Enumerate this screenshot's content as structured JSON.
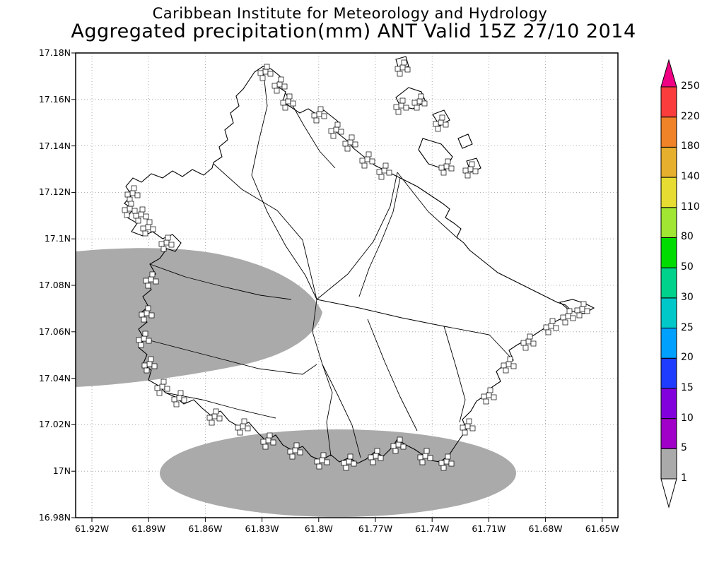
{
  "header": {
    "institute": "Caribbean Institute for Meteorology and Hydrology",
    "title": "Aggregated precipitation(mm) ANT Valid 15Z 27/10 2014"
  },
  "axes": {
    "y_ticks": [
      "17.18N",
      "17.16N",
      "17.14N",
      "17.12N",
      "17.1N",
      "17.08N",
      "17.06N",
      "17.04N",
      "17.02N",
      "17N",
      "16.98N"
    ],
    "x_ticks": [
      "61.92W",
      "61.89W",
      "61.86W",
      "61.83W",
      "61.8W",
      "61.77W",
      "61.74W",
      "61.71W",
      "61.68W",
      "61.65W"
    ]
  },
  "colorbar": {
    "levels": [
      "1",
      "5",
      "10",
      "15",
      "20",
      "25",
      "30",
      "50",
      "80",
      "110",
      "140",
      "180",
      "220",
      "250"
    ],
    "colors": [
      "#ffffff",
      "#aaaaaa",
      "#a000c8",
      "#8200dc",
      "#1e3cff",
      "#00a0ff",
      "#00c8c8",
      "#00d28c",
      "#00dc00",
      "#a0e632",
      "#e6dc32",
      "#e6af2d",
      "#f08228",
      "#fa3c3c",
      "#f00082"
    ]
  },
  "chart_data": {
    "type": "map",
    "variable": "Aggregated precipitation (mm)",
    "domain_label": "ANT (Antigua)",
    "valid_time": "15Z 27/10 2014",
    "lat_ticks": [
      "17.18N",
      "17.16N",
      "17.14N",
      "17.12N",
      "17.1N",
      "17.08N",
      "17.06N",
      "17.04N",
      "17.02N",
      "17N",
      "16.98N"
    ],
    "lon_ticks": [
      "61.92W",
      "61.89W",
      "61.86W",
      "61.83W",
      "61.8W",
      "61.77W",
      "61.74W",
      "61.71W",
      "61.68W",
      "61.65W"
    ],
    "colorbar_levels_mm": [
      1,
      5,
      10,
      15,
      20,
      25,
      30,
      50,
      80,
      110,
      140,
      180,
      220,
      250
    ],
    "shaded_regions": [
      {
        "range_mm": "1-5",
        "color": "#aaaaaa",
        "description": "Band over western Antigua and adjacent waters, roughly 17.035N-17.095N, from west plot edge (61.92W) east to about 61.80W"
      },
      {
        "range_mm": "1-5",
        "color": "#aaaaaa",
        "description": "Oval along the south coast, roughly 16.98N-17.02N, from about 61.88W to 61.71W"
      }
    ],
    "grid_on": true,
    "legend_position": "right colorbar with arrow caps"
  }
}
